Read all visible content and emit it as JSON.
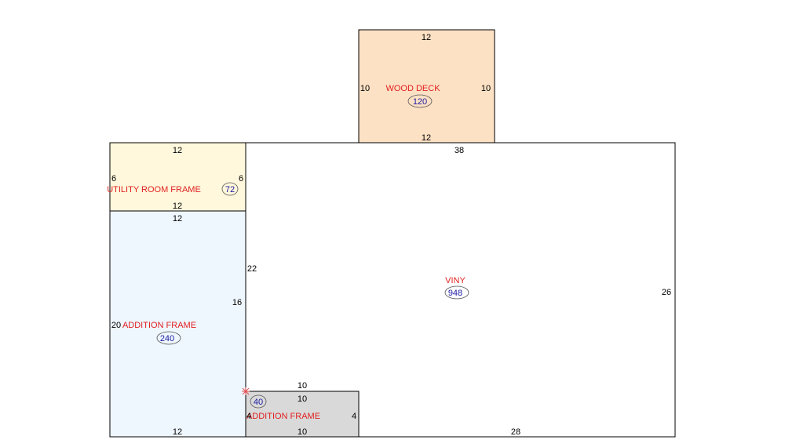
{
  "areas": [
    {
      "label": "WOOD DECK",
      "area": "120",
      "dims": [
        "12",
        "10",
        "10",
        "12"
      ]
    },
    {
      "label": "UTILITY ROOM FRAME",
      "area": "72",
      "dims": [
        "12",
        "6",
        "6",
        "12"
      ]
    },
    {
      "label": "ADDITION FRAME",
      "area": "240",
      "dims": [
        "12",
        "20",
        "16",
        "12"
      ]
    },
    {
      "label": "ADDITION FRAME",
      "area": "40",
      "dims": [
        "10",
        "4",
        "4",
        "10"
      ]
    },
    {
      "label": "VINY",
      "area": "948",
      "dims": [
        "38",
        "22",
        "26",
        "28",
        "10"
      ]
    }
  ]
}
